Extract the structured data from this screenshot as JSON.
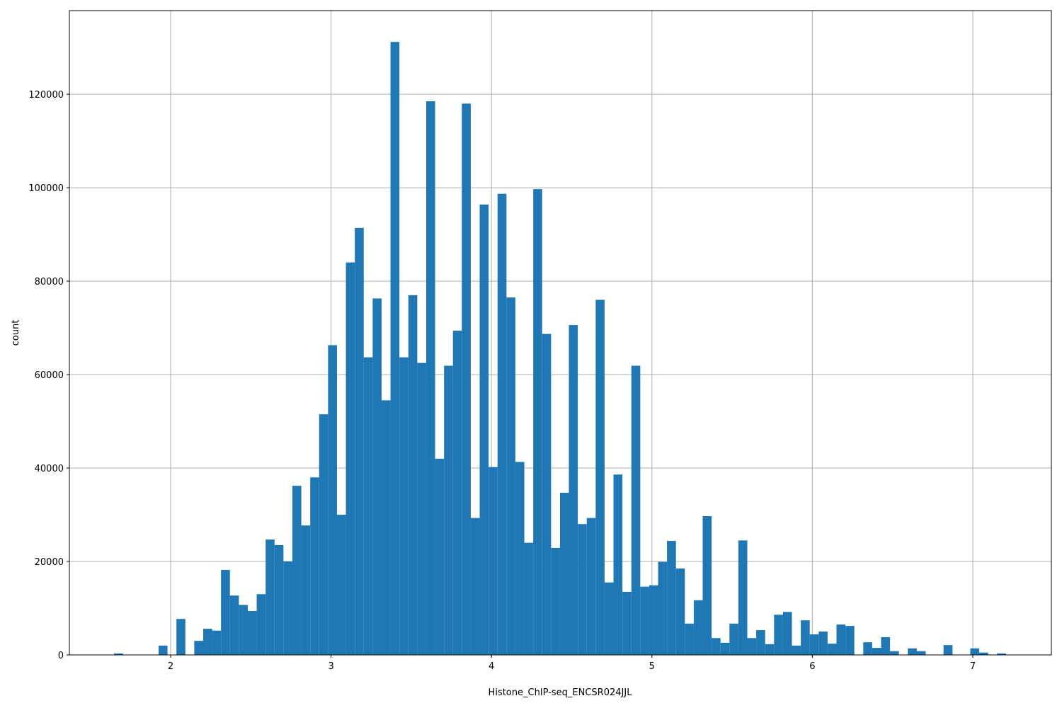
{
  "chart_data": {
    "type": "histogram",
    "xlabel": "Histone_ChIP-seq_ENCSR024JJL",
    "ylabel": "count",
    "color": "#1f77b4",
    "grid": true,
    "xlim": [
      1.369,
      7.49
    ],
    "ylim": [
      0,
      137900
    ],
    "xticks": [
      2,
      3,
      4,
      5,
      6,
      7
    ],
    "yticks": [
      0,
      20000,
      40000,
      60000,
      80000,
      100000,
      120000
    ],
    "bins": [
      1.647,
      1.7026,
      1.7582,
      1.8138,
      1.8694,
      1.925,
      1.9806,
      2.0362,
      2.0918,
      2.1474,
      2.203,
      2.2586,
      2.3142,
      2.3698,
      2.4254,
      2.481,
      2.5366,
      2.5922,
      2.6478,
      2.7034,
      2.759,
      2.8146,
      2.8702,
      2.9258,
      2.9814,
      3.037,
      3.0926,
      3.1482,
      3.2038,
      3.2594,
      3.315,
      3.3706,
      3.4262,
      3.4818,
      3.5374,
      3.593,
      3.6486,
      3.7042,
      3.7598,
      3.8154,
      3.871,
      3.9266,
      3.9822,
      4.0378,
      4.0934,
      4.149,
      4.2046,
      4.2602,
      4.3158,
      4.3714,
      4.427,
      4.4826,
      4.5382,
      4.5938,
      4.6494,
      4.705,
      4.7606,
      4.8162,
      4.8718,
      4.9274,
      4.983,
      5.0386,
      5.0942,
      5.1498,
      5.2054,
      5.261,
      5.3166,
      5.3722,
      5.4278,
      5.4834,
      5.539,
      5.5946,
      5.6502,
      5.7058,
      5.7614,
      5.817,
      5.8726,
      5.9282,
      5.9838,
      6.0394,
      6.095,
      6.1506,
      6.2062,
      6.2618,
      6.3174,
      6.373,
      6.4286,
      6.4842,
      6.5398,
      6.5954,
      6.651,
      6.7066,
      6.7622,
      6.8178,
      6.8734,
      6.929,
      6.9846,
      7.0402,
      7.0958,
      7.1514,
      7.207
    ],
    "values": [
      300,
      0,
      0,
      0,
      0,
      2000,
      0,
      7700,
      0,
      3000,
      5600,
      5200,
      18200,
      12700,
      10700,
      9400,
      13000,
      24700,
      23500,
      20000,
      36200,
      27700,
      38000,
      51500,
      66300,
      30000,
      84000,
      91400,
      63700,
      76300,
      54500,
      131200,
      63700,
      77000,
      62500,
      118500,
      42000,
      61900,
      69400,
      118000,
      29300,
      96400,
      40200,
      98700,
      76500,
      41300,
      24000,
      99700,
      68700,
      22900,
      34700,
      70600,
      28000,
      29300,
      76000,
      15500,
      38600,
      13500,
      61900,
      14600,
      14900,
      19900,
      24400,
      18500,
      6700,
      11700,
      29700,
      3600,
      2600,
      6700,
      24500,
      3600,
      5300,
      2300,
      8600,
      9200,
      2000,
      7400,
      4400,
      5000,
      2400,
      6500,
      6200,
      0,
      2700,
      1500,
      3800,
      800,
      0,
      1400,
      800,
      0,
      0,
      2100,
      0,
      0,
      1400,
      500,
      0,
      300
    ]
  }
}
